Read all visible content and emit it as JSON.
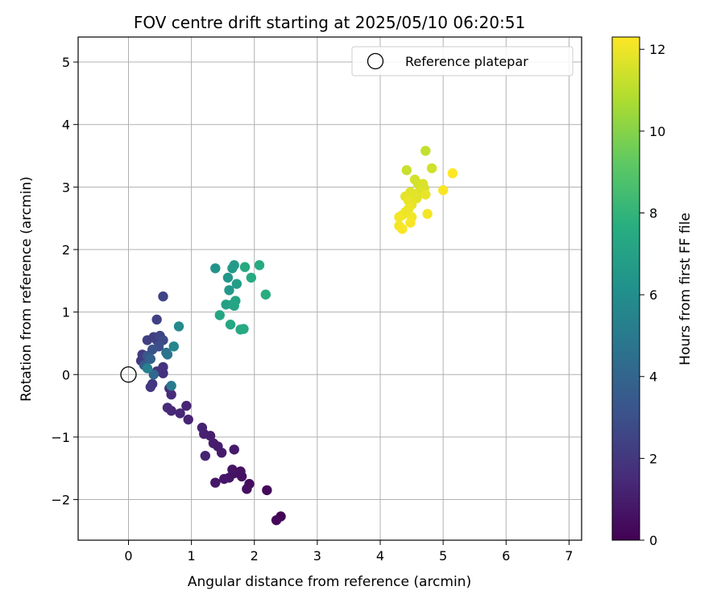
{
  "chart_data": {
    "type": "scatter",
    "title": "FOV centre drift starting at 2025/05/10 06:20:51",
    "xlabel": "Angular distance from reference (arcmin)",
    "ylabel": "Rotation from reference (arcmin)",
    "xlim": [
      -0.8,
      7.2
    ],
    "ylim": [
      -2.65,
      5.4
    ],
    "xticks": [
      0,
      1,
      2,
      3,
      4,
      5,
      6,
      7
    ],
    "yticks": [
      -2,
      -1,
      0,
      1,
      2,
      3,
      4,
      5
    ],
    "grid": true,
    "legend": {
      "placement": "top-right",
      "entries": [
        "Reference platepar"
      ]
    },
    "reference_point": {
      "x": 0,
      "y": 0,
      "label": "Reference platepar"
    },
    "colorbar": {
      "label": "Hours from first FF file",
      "range": [
        0,
        12.3
      ],
      "ticks": [
        0,
        2,
        4,
        6,
        8,
        10,
        12
      ],
      "colormap": "viridis"
    },
    "points": [
      {
        "x": 2.42,
        "y": -2.27,
        "c": 0.1
      },
      {
        "x": 2.35,
        "y": -2.33,
        "c": 0.2
      },
      {
        "x": 2.2,
        "y": -1.85,
        "c": 0.3
      },
      {
        "x": 1.92,
        "y": -1.75,
        "c": 0.4
      },
      {
        "x": 1.88,
        "y": -1.83,
        "c": 0.5
      },
      {
        "x": 1.8,
        "y": -1.63,
        "c": 0.5
      },
      {
        "x": 1.78,
        "y": -1.55,
        "c": 0.6
      },
      {
        "x": 1.68,
        "y": -1.58,
        "c": 0.6
      },
      {
        "x": 1.65,
        "y": -1.52,
        "c": 0.7
      },
      {
        "x": 1.6,
        "y": -1.65,
        "c": 0.7
      },
      {
        "x": 1.52,
        "y": -1.67,
        "c": 0.8
      },
      {
        "x": 1.38,
        "y": -1.73,
        "c": 0.8
      },
      {
        "x": 1.68,
        "y": -1.2,
        "c": 0.9
      },
      {
        "x": 1.48,
        "y": -1.25,
        "c": 0.9
      },
      {
        "x": 1.42,
        "y": -1.15,
        "c": 1.0
      },
      {
        "x": 1.35,
        "y": -1.1,
        "c": 1.0
      },
      {
        "x": 1.3,
        "y": -0.98,
        "c": 1.1
      },
      {
        "x": 1.2,
        "y": -0.95,
        "c": 1.1
      },
      {
        "x": 1.17,
        "y": -0.85,
        "c": 1.2
      },
      {
        "x": 1.22,
        "y": -1.3,
        "c": 1.2
      },
      {
        "x": 0.92,
        "y": -0.5,
        "c": 1.3
      },
      {
        "x": 0.95,
        "y": -0.72,
        "c": 1.3
      },
      {
        "x": 0.82,
        "y": -0.62,
        "c": 1.4
      },
      {
        "x": 0.68,
        "y": -0.58,
        "c": 1.4
      },
      {
        "x": 0.62,
        "y": -0.53,
        "c": 1.5
      },
      {
        "x": 0.68,
        "y": -0.32,
        "c": 1.5
      },
      {
        "x": 0.65,
        "y": -0.22,
        "c": 1.6
      },
      {
        "x": 0.55,
        "y": 0.02,
        "c": 1.7
      },
      {
        "x": 0.55,
        "y": 0.12,
        "c": 1.8
      },
      {
        "x": 0.45,
        "y": 0.05,
        "c": 1.9
      },
      {
        "x": 0.38,
        "y": -0.15,
        "c": 2.0
      },
      {
        "x": 0.35,
        "y": -0.2,
        "c": 2.0
      },
      {
        "x": 0.2,
        "y": 0.22,
        "c": 2.1
      },
      {
        "x": 0.22,
        "y": 0.32,
        "c": 2.2
      },
      {
        "x": 0.3,
        "y": 0.55,
        "c": 2.3
      },
      {
        "x": 0.4,
        "y": 0.6,
        "c": 2.3
      },
      {
        "x": 0.45,
        "y": 0.55,
        "c": 2.4
      },
      {
        "x": 0.45,
        "y": 0.88,
        "c": 2.4
      },
      {
        "x": 0.55,
        "y": 1.25,
        "c": 2.5
      },
      {
        "x": 0.5,
        "y": 0.62,
        "c": 2.6
      },
      {
        "x": 0.55,
        "y": 0.55,
        "c": 2.7
      },
      {
        "x": 0.48,
        "y": 0.45,
        "c": 2.9
      },
      {
        "x": 0.38,
        "y": 0.4,
        "c": 3.1
      },
      {
        "x": 0.3,
        "y": 0.3,
        "c": 3.3
      },
      {
        "x": 0.25,
        "y": 0.15,
        "c": 3.5
      },
      {
        "x": 0.35,
        "y": 0.25,
        "c": 3.8
      },
      {
        "x": 0.4,
        "y": 0.0,
        "c": 4.1
      },
      {
        "x": 0.6,
        "y": 0.35,
        "c": 4.4
      },
      {
        "x": 0.62,
        "y": 0.32,
        "c": 4.7
      },
      {
        "x": 0.68,
        "y": -0.18,
        "c": 5.0
      },
      {
        "x": 0.3,
        "y": 0.1,
        "c": 5.3
      },
      {
        "x": 0.72,
        "y": 0.45,
        "c": 5.6
      },
      {
        "x": 0.8,
        "y": 0.77,
        "c": 5.8
      },
      {
        "x": 1.38,
        "y": 1.7,
        "c": 6.3
      },
      {
        "x": 1.58,
        "y": 1.55,
        "c": 6.4
      },
      {
        "x": 1.6,
        "y": 1.35,
        "c": 6.5
      },
      {
        "x": 1.65,
        "y": 1.7,
        "c": 6.6
      },
      {
        "x": 1.68,
        "y": 1.75,
        "c": 6.7
      },
      {
        "x": 1.72,
        "y": 1.45,
        "c": 6.8
      },
      {
        "x": 1.55,
        "y": 1.12,
        "c": 6.9
      },
      {
        "x": 1.65,
        "y": 1.12,
        "c": 7.0
      },
      {
        "x": 1.7,
        "y": 1.18,
        "c": 7.1
      },
      {
        "x": 1.68,
        "y": 1.1,
        "c": 7.2
      },
      {
        "x": 1.45,
        "y": 0.95,
        "c": 7.2
      },
      {
        "x": 1.62,
        "y": 0.8,
        "c": 7.3
      },
      {
        "x": 1.78,
        "y": 0.72,
        "c": 7.3
      },
      {
        "x": 1.83,
        "y": 0.73,
        "c": 7.4
      },
      {
        "x": 1.85,
        "y": 1.72,
        "c": 7.4
      },
      {
        "x": 1.95,
        "y": 1.55,
        "c": 7.5
      },
      {
        "x": 2.08,
        "y": 1.75,
        "c": 7.5
      },
      {
        "x": 2.18,
        "y": 1.28,
        "c": 7.6
      },
      {
        "x": 4.72,
        "y": 3.58,
        "c": 11.2
      },
      {
        "x": 4.42,
        "y": 3.27,
        "c": 11.3
      },
      {
        "x": 4.82,
        "y": 3.3,
        "c": 11.4
      },
      {
        "x": 4.55,
        "y": 3.12,
        "c": 11.5
      },
      {
        "x": 4.6,
        "y": 3.05,
        "c": 11.5
      },
      {
        "x": 4.68,
        "y": 3.05,
        "c": 11.6
      },
      {
        "x": 4.7,
        "y": 2.98,
        "c": 11.6
      },
      {
        "x": 4.62,
        "y": 2.92,
        "c": 11.7
      },
      {
        "x": 4.48,
        "y": 2.92,
        "c": 11.7
      },
      {
        "x": 4.52,
        "y": 2.88,
        "c": 11.8
      },
      {
        "x": 4.4,
        "y": 2.85,
        "c": 11.8
      },
      {
        "x": 4.58,
        "y": 2.82,
        "c": 11.8
      },
      {
        "x": 4.72,
        "y": 2.88,
        "c": 11.9
      },
      {
        "x": 4.45,
        "y": 2.78,
        "c": 11.9
      },
      {
        "x": 4.5,
        "y": 2.72,
        "c": 11.9
      },
      {
        "x": 4.45,
        "y": 2.65,
        "c": 12.0
      },
      {
        "x": 4.4,
        "y": 2.6,
        "c": 12.0
      },
      {
        "x": 4.35,
        "y": 2.55,
        "c": 12.0
      },
      {
        "x": 4.3,
        "y": 2.52,
        "c": 12.1
      },
      {
        "x": 4.5,
        "y": 2.52,
        "c": 12.1
      },
      {
        "x": 4.75,
        "y": 2.57,
        "c": 12.1
      },
      {
        "x": 4.3,
        "y": 2.38,
        "c": 12.1
      },
      {
        "x": 4.35,
        "y": 2.33,
        "c": 12.2
      },
      {
        "x": 4.48,
        "y": 2.43,
        "c": 12.2
      },
      {
        "x": 5.0,
        "y": 2.95,
        "c": 12.2
      },
      {
        "x": 5.15,
        "y": 3.22,
        "c": 12.3
      }
    ]
  }
}
